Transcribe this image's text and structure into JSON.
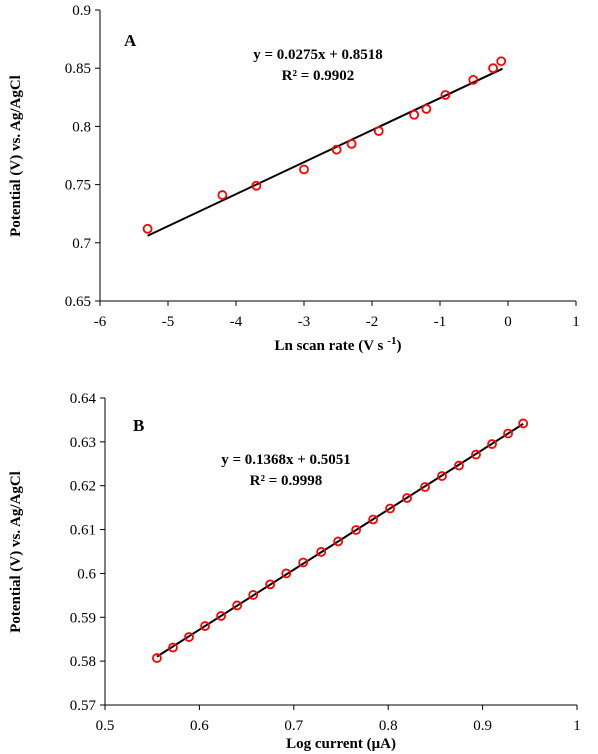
{
  "chart_data": [
    {
      "type": "scatter",
      "panel_label": "A",
      "xlabel": "Ln scan rate (V s",
      "xlabel_sup": "-1",
      "xlabel_close": ")",
      "ylabel": "Potential (V) vs. Ag/AgCl",
      "xlim": [
        -6,
        1
      ],
      "ylim": [
        0.65,
        0.9
      ],
      "xticks": [
        "-6",
        "-5",
        "-4",
        "-3",
        "-2",
        "-1",
        "0",
        "1"
      ],
      "yticks": [
        "0.65",
        "0.7",
        "0.75",
        "0.8",
        "0.85",
        "0.9"
      ],
      "equation": "y = 0.0275x + 0.8518",
      "r_squared": "R² = 0.9902",
      "fit": {
        "slope": 0.0275,
        "intercept": 0.8518,
        "x_range": [
          -5.3,
          -0.08
        ]
      },
      "grid": false,
      "marker_color": "#ff0000",
      "line_color": "#000000",
      "points": [
        {
          "x": -5.3,
          "y": 0.712
        },
        {
          "x": -4.2,
          "y": 0.741
        },
        {
          "x": -3.7,
          "y": 0.749
        },
        {
          "x": -3.0,
          "y": 0.763
        },
        {
          "x": -2.52,
          "y": 0.78
        },
        {
          "x": -2.3,
          "y": 0.785
        },
        {
          "x": -1.9,
          "y": 0.796
        },
        {
          "x": -1.38,
          "y": 0.81
        },
        {
          "x": -1.2,
          "y": 0.815
        },
        {
          "x": -0.92,
          "y": 0.827
        },
        {
          "x": -0.51,
          "y": 0.84
        },
        {
          "x": -0.22,
          "y": 0.85
        },
        {
          "x": -0.1,
          "y": 0.856
        }
      ]
    },
    {
      "type": "scatter",
      "panel_label": "B",
      "xlabel": "Log current (μA)",
      "ylabel": "Potential (V) vs. Ag/AgCl",
      "xlim": [
        0.5,
        1
      ],
      "ylim": [
        0.57,
        0.64
      ],
      "xticks": [
        "0.5",
        "0.6",
        "0.7",
        "0.8",
        "0.9",
        "1"
      ],
      "yticks": [
        "0.57",
        "0.58",
        "0.59",
        "0.6",
        "0.61",
        "0.62",
        "0.63",
        "0.64"
      ],
      "equation": "y = 0.1368x + 0.5051",
      "r_squared": "R² = 0.9998",
      "fit": {
        "slope": 0.1368,
        "intercept": 0.5051,
        "x_range": [
          0.555,
          0.943
        ]
      },
      "grid": false,
      "marker_color": "#ff0000",
      "line_color": "#000000",
      "points": [
        {
          "x": 0.555,
          "y": 0.5807
        },
        {
          "x": 0.572,
          "y": 0.5831
        },
        {
          "x": 0.589,
          "y": 0.5855
        },
        {
          "x": 0.606,
          "y": 0.588
        },
        {
          "x": 0.623,
          "y": 0.5903
        },
        {
          "x": 0.64,
          "y": 0.5927
        },
        {
          "x": 0.657,
          "y": 0.5951
        },
        {
          "x": 0.675,
          "y": 0.5975
        },
        {
          "x": 0.692,
          "y": 0.6
        },
        {
          "x": 0.71,
          "y": 0.6025
        },
        {
          "x": 0.729,
          "y": 0.6049
        },
        {
          "x": 0.747,
          "y": 0.6073
        },
        {
          "x": 0.766,
          "y": 0.6099
        },
        {
          "x": 0.784,
          "y": 0.6123
        },
        {
          "x": 0.802,
          "y": 0.6148
        },
        {
          "x": 0.82,
          "y": 0.6172
        },
        {
          "x": 0.839,
          "y": 0.6197
        },
        {
          "x": 0.857,
          "y": 0.6222
        },
        {
          "x": 0.875,
          "y": 0.6246
        },
        {
          "x": 0.893,
          "y": 0.6271
        },
        {
          "x": 0.91,
          "y": 0.6295
        },
        {
          "x": 0.927,
          "y": 0.6319
        },
        {
          "x": 0.943,
          "y": 0.6342
        }
      ]
    }
  ]
}
